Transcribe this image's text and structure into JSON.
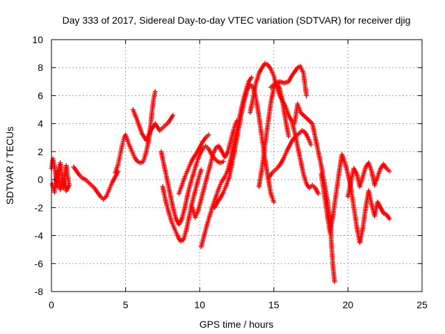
{
  "chart_data": {
    "type": "scatter",
    "title": "Day 333 of 2017, Sidereal Day-to-day VTEC variation (SDTVAR) for receiver djig",
    "xlabel": "GPS time / hours",
    "ylabel": "SDTVAR / TECUs",
    "xlim": [
      0,
      25
    ],
    "ylim": [
      -8,
      10
    ],
    "xticks": [
      0,
      5,
      10,
      15,
      20,
      25
    ],
    "yticks": [
      -8,
      -6,
      -4,
      -2,
      0,
      2,
      4,
      6,
      8,
      10
    ],
    "grid": true,
    "marker": "plus",
    "color": "#ff0000",
    "series": [
      {
        "values": [
          [
            0.0,
            0.8
          ],
          [
            0.1,
            1.5
          ],
          [
            0.2,
            1.0
          ],
          [
            0.3,
            0.2
          ],
          [
            0.4,
            -0.5
          ],
          [
            0.5,
            0.9
          ],
          [
            0.6,
            1.2
          ],
          [
            0.7,
            0.3
          ],
          [
            0.8,
            -0.6
          ],
          [
            0.9,
            0.5
          ],
          [
            1.0,
            1.0
          ],
          [
            1.1,
            0.2
          ],
          [
            1.2,
            -0.4
          ],
          [
            1.0,
            -0.8
          ],
          [
            0.8,
            0.0
          ],
          [
            0.6,
            -0.7
          ],
          [
            0.4,
            0.6
          ],
          [
            0.2,
            -0.9
          ],
          [
            0.05,
            -0.3
          ]
        ]
      },
      {
        "values": [
          [
            1.5,
            0.9
          ],
          [
            1.7,
            0.6
          ],
          [
            1.9,
            0.3
          ],
          [
            2.1,
            0.1
          ],
          [
            2.3,
            0.0
          ],
          [
            2.5,
            -0.2
          ],
          [
            2.7,
            -0.4
          ],
          [
            2.9,
            -0.6
          ],
          [
            3.1,
            -0.9
          ],
          [
            3.3,
            -1.2
          ],
          [
            3.5,
            -1.4
          ],
          [
            3.7,
            -1.2
          ],
          [
            3.9,
            -0.7
          ],
          [
            4.1,
            -0.2
          ],
          [
            4.3,
            0.2
          ],
          [
            4.5,
            0.6
          ]
        ]
      },
      {
        "values": [
          [
            4.3,
            0.5
          ],
          [
            4.5,
            1.1
          ],
          [
            4.6,
            1.6
          ],
          [
            4.7,
            2.1
          ],
          [
            4.8,
            2.6
          ],
          [
            4.9,
            3.0
          ],
          [
            5.0,
            3.2
          ],
          [
            5.2,
            2.6
          ],
          [
            5.4,
            2.1
          ],
          [
            5.6,
            1.6
          ],
          [
            5.8,
            1.3
          ],
          [
            6.0,
            1.2
          ],
          [
            6.2,
            1.3
          ],
          [
            6.4,
            2.0
          ],
          [
            6.6,
            3.0
          ],
          [
            6.7,
            4.0
          ],
          [
            6.8,
            5.0
          ],
          [
            6.9,
            5.8
          ],
          [
            7.0,
            6.3
          ]
        ]
      },
      {
        "values": [
          [
            5.5,
            5.0
          ],
          [
            5.8,
            4.2
          ],
          [
            6.1,
            3.3
          ],
          [
            6.4,
            2.8
          ],
          [
            6.7,
            3.5
          ],
          [
            7.0,
            4.0
          ],
          [
            7.3,
            3.5
          ],
          [
            7.6,
            3.8
          ],
          [
            7.9,
            4.1
          ],
          [
            8.2,
            4.6
          ]
        ]
      },
      {
        "values": [
          [
            7.4,
            2.0
          ],
          [
            7.6,
            1.0
          ],
          [
            7.8,
            0.0
          ],
          [
            8.0,
            -1.0
          ],
          [
            8.2,
            -2.0
          ],
          [
            8.4,
            -2.8
          ],
          [
            8.6,
            -3.2
          ],
          [
            8.8,
            -2.8
          ],
          [
            9.0,
            -2.0
          ],
          [
            9.2,
            -1.0
          ],
          [
            9.4,
            -0.2
          ],
          [
            9.6,
            0.5
          ],
          [
            9.8,
            1.2
          ],
          [
            10.0,
            1.8
          ],
          [
            10.2,
            2.2
          ],
          [
            10.4,
            2.4
          ],
          [
            10.6,
            2.2
          ],
          [
            10.8,
            1.8
          ],
          [
            11.0,
            1.5
          ],
          [
            11.2,
            1.3
          ],
          [
            11.4,
            1.2
          ],
          [
            11.6,
            1.3
          ]
        ]
      },
      {
        "values": [
          [
            7.5,
            -0.5
          ],
          [
            7.7,
            -1.5
          ],
          [
            7.9,
            -2.3
          ],
          [
            8.1,
            -3.0
          ],
          [
            8.3,
            -3.5
          ],
          [
            8.5,
            -4.0
          ],
          [
            8.7,
            -4.4
          ],
          [
            8.9,
            -4.3
          ],
          [
            9.1,
            -3.6
          ],
          [
            9.3,
            -2.6
          ],
          [
            9.5,
            -1.6
          ],
          [
            9.7,
            -0.8
          ],
          [
            9.9,
            0.0
          ],
          [
            10.1,
            0.7
          ]
        ]
      },
      {
        "values": [
          [
            8.6,
            -1.0
          ],
          [
            8.8,
            -0.4
          ],
          [
            9.0,
            0.2
          ],
          [
            9.2,
            0.7
          ],
          [
            9.4,
            1.2
          ],
          [
            9.6,
            1.6
          ],
          [
            9.8,
            1.9
          ],
          [
            10.0,
            2.3
          ],
          [
            10.2,
            2.7
          ],
          [
            10.4,
            3.0
          ],
          [
            10.6,
            3.2
          ]
        ]
      },
      {
        "values": [
          [
            9.5,
            -2.0
          ],
          [
            9.7,
            -2.7
          ],
          [
            9.9,
            -2.2
          ],
          [
            10.1,
            -1.4
          ],
          [
            10.3,
            -0.6
          ],
          [
            10.5,
            0.2
          ],
          [
            10.7,
            1.0
          ],
          [
            10.9,
            1.8
          ],
          [
            11.1,
            2.3
          ],
          [
            11.3,
            2.4
          ],
          [
            11.5,
            2.0
          ],
          [
            11.7,
            1.6
          ],
          [
            11.9,
            2.0
          ],
          [
            12.1,
            2.8
          ],
          [
            12.3,
            3.6
          ],
          [
            12.5,
            4.2
          ]
        ]
      },
      {
        "values": [
          [
            10.1,
            -4.8
          ],
          [
            10.3,
            -4.0
          ],
          [
            10.5,
            -3.2
          ],
          [
            10.7,
            -2.5
          ],
          [
            10.9,
            -1.8
          ],
          [
            11.1,
            -1.2
          ],
          [
            11.3,
            -0.6
          ],
          [
            11.5,
            -0.1
          ],
          [
            11.7,
            0.2
          ],
          [
            11.9,
            0.7
          ],
          [
            12.1,
            1.5
          ],
          [
            12.3,
            2.5
          ],
          [
            12.5,
            3.5
          ],
          [
            12.7,
            4.5
          ],
          [
            12.9,
            5.5
          ],
          [
            13.1,
            6.3
          ],
          [
            13.3,
            7.0
          ],
          [
            13.5,
            7.3
          ]
        ]
      },
      {
        "values": [
          [
            11.0,
            -2.0
          ],
          [
            11.2,
            -1.6
          ],
          [
            11.4,
            -1.3
          ],
          [
            11.6,
            -0.9
          ],
          [
            11.8,
            -0.4
          ],
          [
            12.0,
            0.2
          ],
          [
            12.2,
            1.2
          ],
          [
            12.4,
            2.3
          ],
          [
            12.6,
            3.5
          ],
          [
            12.8,
            4.6
          ],
          [
            13.0,
            5.6
          ],
          [
            13.2,
            6.4
          ],
          [
            13.4,
            6.8
          ],
          [
            13.6,
            6.6
          ],
          [
            13.8,
            5.8
          ],
          [
            14.0,
            4.5
          ],
          [
            14.2,
            3.0
          ],
          [
            14.4,
            1.5
          ],
          [
            14.6,
            0.2
          ],
          [
            14.8,
            -1.0
          ],
          [
            15.0,
            -1.6
          ]
        ]
      },
      {
        "values": [
          [
            13.4,
            4.8
          ],
          [
            13.6,
            5.8
          ],
          [
            13.8,
            6.9
          ],
          [
            14.0,
            7.6
          ],
          [
            14.2,
            8.0
          ],
          [
            14.4,
            8.3
          ],
          [
            14.6,
            8.2
          ],
          [
            14.8,
            7.9
          ],
          [
            15.0,
            7.4
          ],
          [
            15.2,
            6.6
          ],
          [
            15.4,
            6.0
          ],
          [
            15.6,
            5.6
          ],
          [
            15.8,
            5.2
          ],
          [
            16.0,
            4.6
          ],
          [
            16.2,
            4.2
          ],
          [
            16.4,
            3.4
          ],
          [
            16.6,
            2.4
          ],
          [
            16.8,
            1.4
          ],
          [
            17.0,
            0.4
          ],
          [
            17.2,
            -0.3
          ],
          [
            17.4,
            -0.6
          ],
          [
            17.6,
            -0.4
          ],
          [
            17.8,
            -0.6
          ],
          [
            18.0,
            -1.0
          ]
        ]
      },
      {
        "values": [
          [
            14.0,
            -0.5
          ],
          [
            14.2,
            0.8
          ],
          [
            14.4,
            2.4
          ],
          [
            14.6,
            4.0
          ],
          [
            14.8,
            5.5
          ],
          [
            15.0,
            6.6
          ],
          [
            15.2,
            6.9
          ],
          [
            15.4,
            6.5
          ],
          [
            15.6,
            5.5
          ],
          [
            15.8,
            4.2
          ],
          [
            16.0,
            3.1
          ]
        ]
      },
      {
        "values": [
          [
            14.8,
            6.6
          ],
          [
            15.1,
            6.9
          ],
          [
            15.4,
            7.0
          ],
          [
            15.7,
            6.9
          ],
          [
            16.0,
            7.0
          ],
          [
            16.2,
            7.4
          ],
          [
            16.4,
            7.7
          ],
          [
            16.6,
            8.0
          ],
          [
            16.8,
            8.1
          ],
          [
            17.0,
            7.6
          ],
          [
            17.2,
            6.0
          ]
        ]
      },
      {
        "values": [
          [
            14.7,
            0.2
          ],
          [
            14.9,
            0.5
          ],
          [
            15.1,
            0.7
          ],
          [
            15.3,
            0.9
          ],
          [
            15.5,
            1.2
          ],
          [
            15.7,
            1.6
          ],
          [
            15.9,
            2.1
          ],
          [
            16.1,
            2.5
          ],
          [
            16.3,
            2.9
          ],
          [
            16.5,
            3.1
          ],
          [
            16.7,
            3.3
          ],
          [
            16.9,
            3.5
          ],
          [
            17.1,
            3.4
          ],
          [
            17.3,
            3.0
          ],
          [
            17.5,
            2.5
          ]
        ]
      },
      {
        "values": [
          [
            16.4,
            4.0
          ],
          [
            16.6,
            5.4
          ],
          [
            16.8,
            4.8
          ],
          [
            17.6,
            4.0
          ],
          [
            17.8,
            3.0
          ],
          [
            18.0,
            2.0
          ],
          [
            18.2,
            1.0
          ],
          [
            18.4,
            -0.2
          ],
          [
            18.6,
            -1.4
          ],
          [
            18.8,
            -3.0
          ],
          [
            18.9,
            -4.8
          ],
          [
            19.0,
            -6.3
          ],
          [
            19.1,
            -7.3
          ]
        ]
      },
      {
        "values": [
          [
            18.2,
            0.4
          ],
          [
            18.4,
            -1.0
          ],
          [
            18.6,
            -2.5
          ],
          [
            18.8,
            -3.8
          ],
          [
            19.0,
            -2.5
          ],
          [
            19.2,
            -1.0
          ],
          [
            19.4,
            0.5
          ],
          [
            19.6,
            1.8
          ],
          [
            19.8,
            1.2
          ],
          [
            20.0,
            0.4
          ],
          [
            20.2,
            -0.6
          ],
          [
            20.4,
            -2.0
          ],
          [
            20.6,
            -3.4
          ],
          [
            20.8,
            -4.5
          ],
          [
            21.0,
            -3.5
          ],
          [
            21.2,
            -2.0
          ],
          [
            21.4,
            -0.8
          ],
          [
            21.6,
            -1.8
          ],
          [
            21.8,
            -2.6
          ],
          [
            22.0,
            -1.6
          ],
          [
            22.2,
            -2.0
          ],
          [
            22.4,
            -2.4
          ],
          [
            22.6,
            -2.5
          ],
          [
            22.8,
            -2.8
          ]
        ]
      },
      {
        "values": [
          [
            20.0,
            -1.2
          ],
          [
            20.2,
            -0.2
          ],
          [
            20.4,
            0.8
          ],
          [
            20.6,
            0.4
          ],
          [
            20.8,
            -0.5
          ],
          [
            21.0,
            0.2
          ],
          [
            21.2,
            0.9
          ],
          [
            21.4,
            1.2
          ],
          [
            21.6,
            0.6
          ],
          [
            21.8,
            -0.4
          ],
          [
            22.0,
            0.2
          ],
          [
            22.2,
            0.8
          ],
          [
            22.4,
            1.1
          ],
          [
            22.6,
            0.8
          ],
          [
            22.8,
            0.6
          ]
        ]
      }
    ]
  }
}
